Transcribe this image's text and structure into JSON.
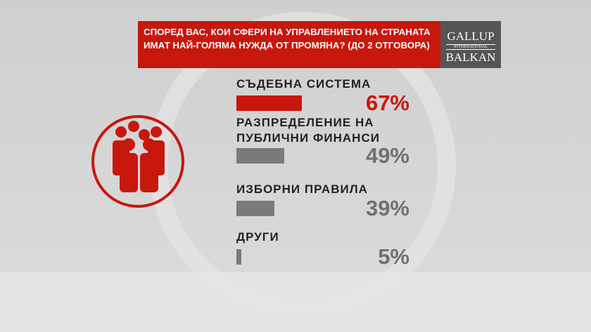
{
  "chart_data": {
    "type": "bar",
    "title": "СПОРЕД ВАС, КОИ СФЕРИ НА УПРАВЛЕНИЕТО НА СТРАНАТА ИМАТ НАЙ-ГОЛЯМА НУЖДА ОТ ПРОМЯНА? (ДО 2 ОТГОВОРА)",
    "logo": {
      "top": "GALLUP",
      "middle": "INTERNATIONAL",
      "bottom": "BALKAN"
    },
    "categories": [
      "СЪДЕБНА СИСТЕМА",
      "РАЗПРЕДЕЛЕНИЕ НА ПУБЛИЧНИ ФИНАНСИ",
      "ИЗБОРНИ ПРАВИЛА",
      "ДРУГИ"
    ],
    "values": [
      67,
      49,
      39,
      5
    ],
    "value_labels": [
      "67%",
      "49%",
      "39%",
      "5%"
    ],
    "colors": [
      "#c8170d",
      "#7a7a7a",
      "#7a7a7a",
      "#7a7a7a"
    ]
  }
}
